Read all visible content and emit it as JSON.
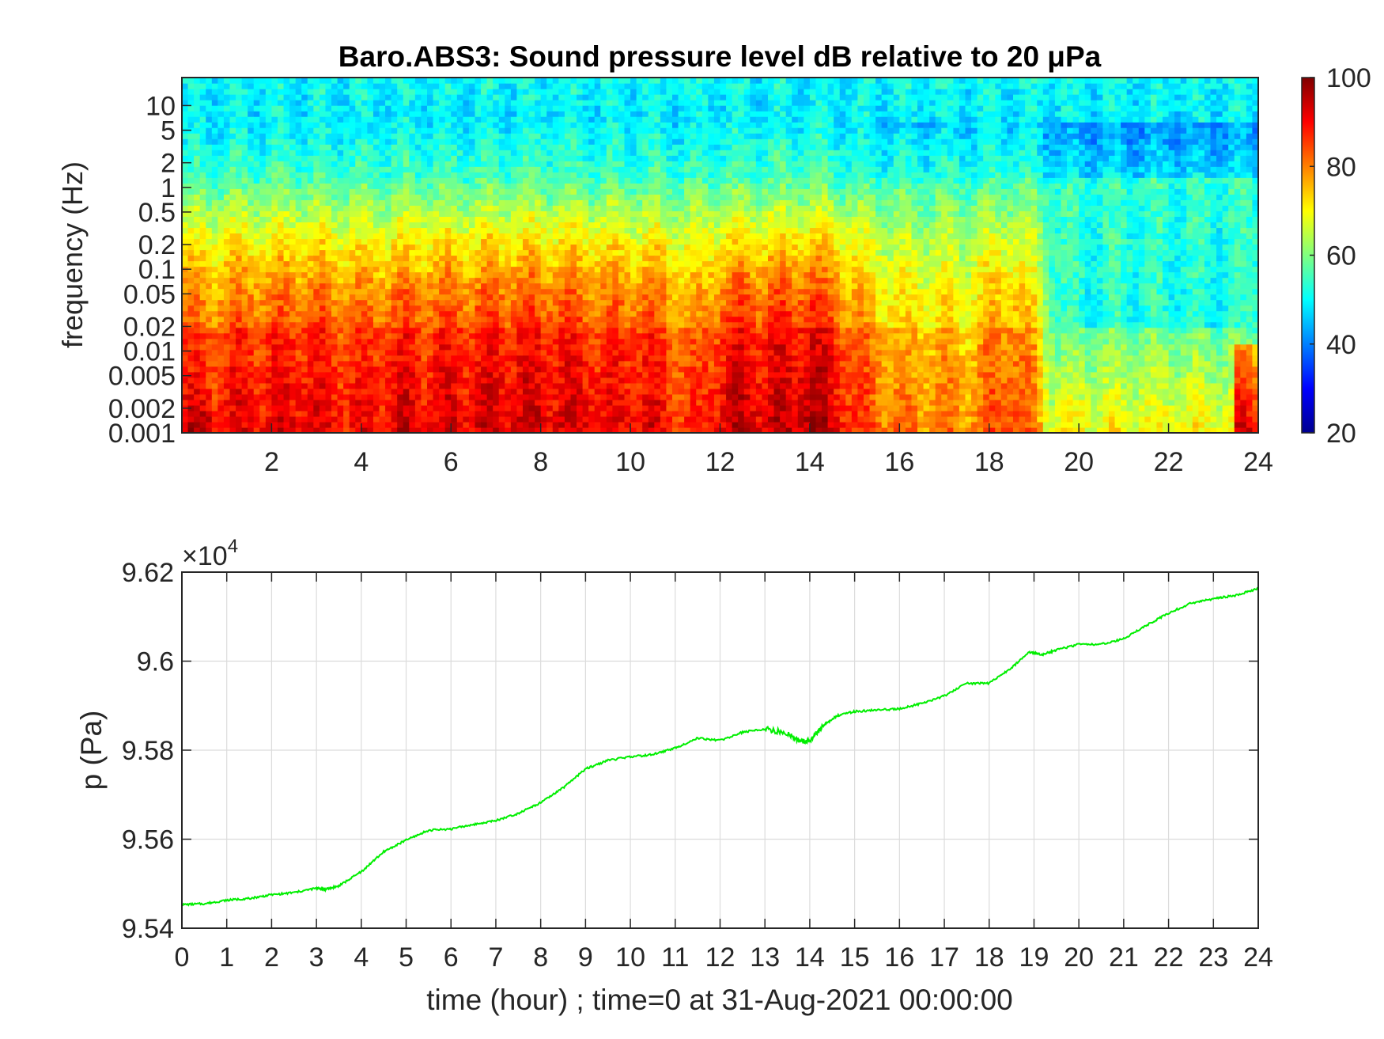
{
  "chart_data": [
    {
      "type": "heatmap",
      "title": "Baro.ABS3: Sound pressure level dB relative to 20 μPa",
      "ylabel": "frequency (Hz)",
      "xlabel": "",
      "x_ticks": [
        2,
        4,
        6,
        8,
        10,
        12,
        14,
        16,
        18,
        20,
        22,
        24
      ],
      "xlim": [
        0,
        24
      ],
      "y_scale": "log",
      "ylim": [
        0.001,
        22
      ],
      "y_ticks": [
        0.001,
        0.002,
        0.005,
        0.01,
        0.02,
        0.05,
        0.1,
        0.2,
        0.5,
        1,
        2,
        5,
        10
      ],
      "y_tick_labels": [
        "0.001",
        "0.002",
        "0.005",
        "0.01",
        "0.02",
        "0.05",
        "0.1",
        "0.2",
        "0.5",
        "1",
        "2",
        "5",
        "10"
      ],
      "colormap": "jet",
      "colorbar": {
        "min": 20,
        "max": 100,
        "ticks": [
          20,
          40,
          60,
          80,
          100
        ]
      },
      "high_frequency_level_db": 50,
      "activity_profile": {
        "hours": [
          0,
          0.5,
          1,
          1.5,
          2,
          2.5,
          3,
          3.5,
          4,
          4.5,
          5,
          5.5,
          6,
          6.5,
          7,
          7.5,
          8,
          8.5,
          9,
          9.5,
          10,
          10.5,
          11,
          11.5,
          12,
          12.5,
          13,
          13.5,
          14,
          14.5,
          15,
          15.5,
          16,
          16.5,
          17,
          17.5,
          18,
          18.5,
          19,
          19.5,
          20,
          20.5,
          21,
          21.5,
          22,
          22.5,
          23,
          23.5,
          24
        ],
        "mid_band_db": [
          82,
          80,
          82,
          83,
          82,
          84,
          83,
          82,
          81,
          83,
          84,
          83,
          84,
          84,
          85,
          85,
          85,
          84,
          84,
          82,
          83,
          83,
          80,
          77,
          84,
          86,
          85,
          86,
          88,
          85,
          78,
          75,
          72,
          72,
          72,
          71,
          75,
          78,
          72,
          55,
          52,
          52,
          53,
          52,
          52,
          52,
          51,
          52,
          55
        ]
      },
      "grid": false
    },
    {
      "type": "line",
      "title": "",
      "xlabel": "time (hour) ; time=0 at 31-Aug-2021 00:00:00",
      "ylabel": "p (Pa)",
      "xlim": [
        0,
        24
      ],
      "ylim": [
        95400,
        96200
      ],
      "x_ticks": [
        0,
        1,
        2,
        3,
        4,
        5,
        6,
        7,
        8,
        9,
        10,
        11,
        12,
        13,
        14,
        15,
        16,
        17,
        18,
        19,
        20,
        21,
        22,
        23,
        24
      ],
      "y_ticks": [
        95400,
        95600,
        95800,
        96000,
        96200
      ],
      "y_tick_labels": [
        "9.54",
        "9.56",
        "9.58",
        "9.6",
        "9.62"
      ],
      "y_exponent_label": "×10",
      "y_exponent_power": "4",
      "grid": true,
      "series": [
        {
          "color": "#00ee00",
          "x": [
            0,
            0.5,
            1,
            1.5,
            2,
            2.5,
            3,
            3.2,
            3.5,
            4,
            4.5,
            5,
            5.5,
            6,
            6.5,
            7,
            7.5,
            8,
            8.5,
            9,
            9.5,
            10,
            10.5,
            11,
            11.5,
            12,
            12.5,
            13,
            13.5,
            13.8,
            14,
            14.3,
            14.6,
            15,
            15.5,
            16,
            16.5,
            17,
            17.5,
            18,
            18.5,
            18.9,
            19.2,
            19.5,
            20,
            20.5,
            21,
            21.5,
            22,
            22.5,
            23,
            23.5,
            24
          ],
          "y": [
            95453,
            95455,
            95463,
            95467,
            95475,
            95480,
            95490,
            95487,
            95495,
            95527,
            95572,
            95598,
            95620,
            95623,
            95633,
            95642,
            95658,
            95682,
            95715,
            95758,
            95777,
            95785,
            95790,
            95805,
            95827,
            95822,
            95840,
            95848,
            95838,
            95818,
            95822,
            95855,
            95877,
            95887,
            95890,
            95893,
            95905,
            95922,
            95950,
            95950,
            95985,
            96020,
            96015,
            96025,
            96038,
            96038,
            96050,
            96080,
            96108,
            96130,
            96140,
            96148,
            96163
          ]
        }
      ]
    }
  ]
}
